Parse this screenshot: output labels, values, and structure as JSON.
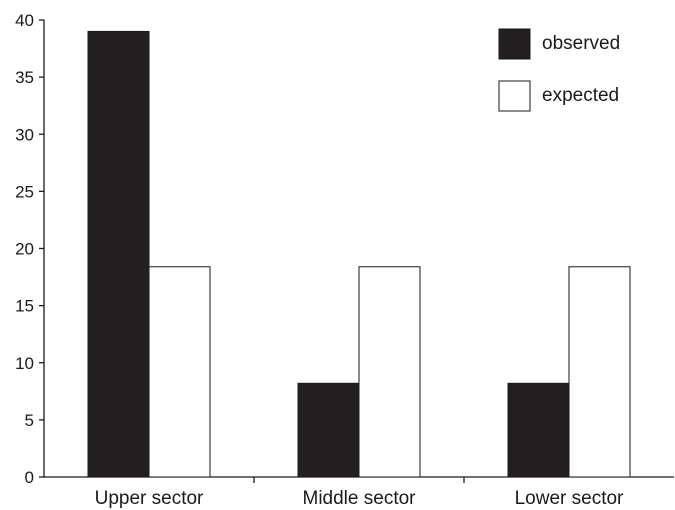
{
  "chart_data": {
    "type": "bar",
    "categories": [
      "Upper sector",
      "Middle sector",
      "Lower sector"
    ],
    "series": [
      {
        "name": "observed",
        "values": [
          39,
          8.2,
          8.2
        ],
        "color": "#231f20"
      },
      {
        "name": "expected",
        "values": [
          18.4,
          18.4,
          18.4
        ],
        "color": "#ffffff"
      }
    ],
    "title": "",
    "xlabel": "",
    "ylabel": "",
    "ylim": [
      0,
      40
    ],
    "yticks": [
      0,
      5,
      10,
      15,
      20,
      25,
      30,
      35,
      40
    ],
    "grid": false,
    "legend": "top-right"
  }
}
